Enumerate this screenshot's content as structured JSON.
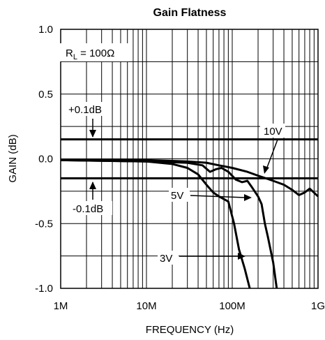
{
  "chart_data": {
    "type": "line",
    "title": "Gain Flatness",
    "xlabel": "FREQUENCY (Hz)",
    "ylabel": "GAIN (dB)",
    "xscale": "log",
    "xlim": [
      1000000,
      1000000000
    ],
    "ylim": [
      -1.0,
      1.0
    ],
    "x_ticks": [
      1000000,
      10000000,
      100000000,
      1000000000
    ],
    "x_tick_labels": [
      "1M",
      "10M",
      "100M",
      "1G"
    ],
    "y_ticks": [
      1.0,
      0.5,
      0.0,
      -0.5,
      -1.0
    ],
    "y_tick_labels": [
      "1.0",
      "0.5",
      "0.0",
      "-0.5",
      "-1.0"
    ],
    "grid": true,
    "condition_label": {
      "main": "R",
      "sub": "L",
      "rest": " = 100Ω"
    },
    "reference_lines": [
      {
        "value": 0.15,
        "label": "+0.1dB"
      },
      {
        "value": -0.15,
        "label": "-0.1dB"
      }
    ],
    "series": [
      {
        "name": "10V",
        "x": [
          1000000,
          10000000,
          30000000,
          50000000,
          70000000,
          100000000,
          150000000,
          200000000,
          300000000,
          400000000,
          500000000,
          600000000,
          700000000,
          800000000,
          1000000000
        ],
        "y": [
          -0.01,
          -0.01,
          -0.02,
          -0.03,
          -0.05,
          -0.07,
          -0.1,
          -0.13,
          -0.17,
          -0.2,
          -0.24,
          -0.28,
          -0.26,
          -0.23,
          -0.29
        ]
      },
      {
        "name": "5V",
        "x": [
          1000000,
          10000000,
          30000000,
          45000000,
          55000000,
          65000000,
          75000000,
          90000000,
          110000000,
          130000000,
          150000000,
          170000000,
          200000000,
          220000000,
          240000000,
          260000000,
          300000000,
          330000000
        ],
        "y": [
          -0.01,
          -0.02,
          -0.03,
          -0.05,
          -0.1,
          -0.08,
          -0.07,
          -0.1,
          -0.16,
          -0.18,
          -0.17,
          -0.22,
          -0.29,
          -0.35,
          -0.5,
          -0.6,
          -0.8,
          -1.0
        ]
      },
      {
        "name": "3V",
        "x": [
          1000000,
          10000000,
          20000000,
          30000000,
          40000000,
          50000000,
          60000000,
          70000000,
          90000000,
          105000000,
          120000000,
          140000000,
          160000000
        ],
        "y": [
          -0.01,
          -0.02,
          -0.04,
          -0.07,
          -0.12,
          -0.2,
          -0.26,
          -0.29,
          -0.33,
          -0.5,
          -0.7,
          -0.85,
          -1.0
        ]
      }
    ]
  }
}
